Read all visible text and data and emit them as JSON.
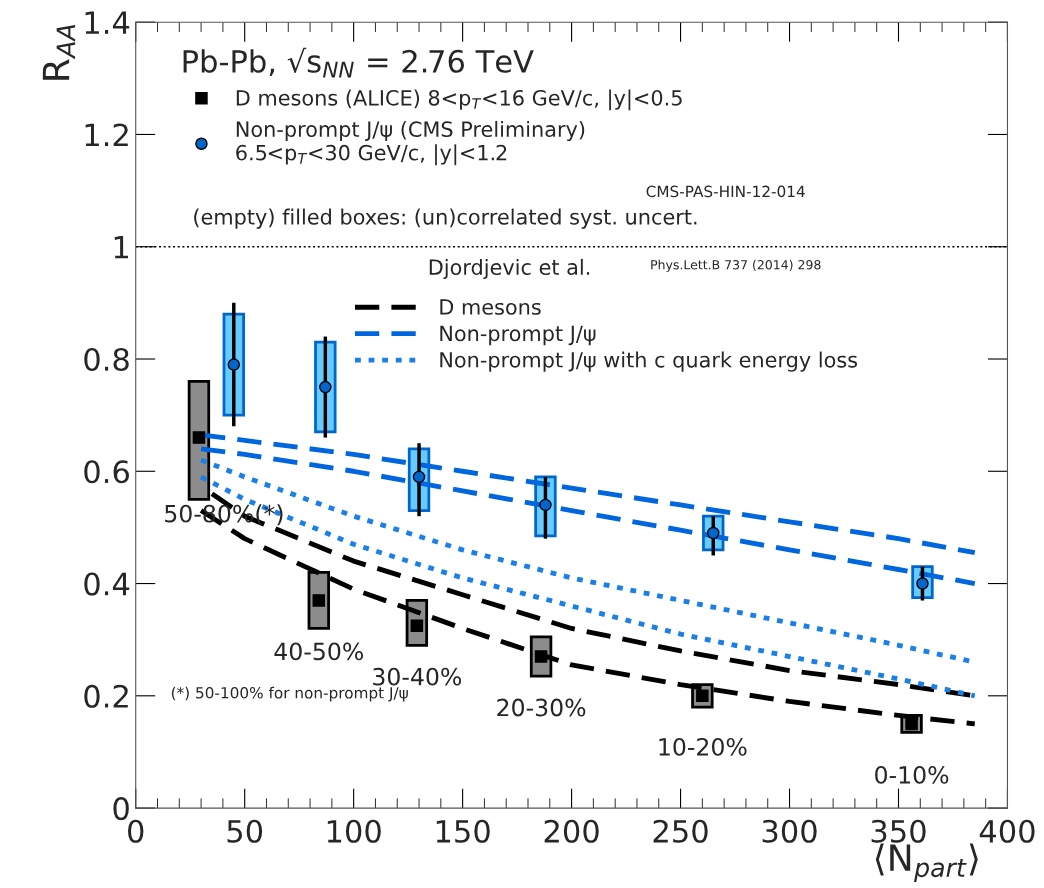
{
  "chart_data": {
    "type": "scatter",
    "xlabel": "⟨N$_{part}$⟩",
    "ylabel": "R$_{AA}$",
    "legend_title": "Pb-Pb, √s$_{NN}$ = 2.76 TeV",
    "xlim": [
      0,
      400
    ],
    "xticks": [
      0,
      50,
      100,
      150,
      200,
      250,
      300,
      350,
      400
    ],
    "ylim": [
      0,
      1.4
    ],
    "yticks": [
      0,
      0.2,
      0.4,
      0.6,
      0.8,
      1,
      1.2,
      1.4
    ],
    "grid": false,
    "legend": "top left",
    "ref_lines": [
      {
        "axis": "y",
        "value": 1,
        "color": "#000000",
        "line_style": "dotted"
      }
    ],
    "annotations": [
      "CMS-PAS-HIN-12-014",
      "(empty) filled boxes: (un)correlated syst. uncert.",
      "Djordjevic et al.",
      "Phys.Lett.B 737 (2014) 298",
      "(*) 50-100% for non-prompt J/ψ",
      {
        "text": "50-80%(*)",
        "x": 29,
        "y": 0.66
      },
      {
        "text": "40-50%",
        "x": 84,
        "y": 0.37
      },
      {
        "text": "30-40%",
        "x": 129,
        "y": 0.325
      },
      {
        "text": "20-30%",
        "x": 186,
        "y": 0.27
      },
      {
        "text": "10-20%",
        "x": 260,
        "y": 0.2
      },
      {
        "text": "0-10%",
        "x": 356,
        "y": 0.15
      }
    ],
    "series": [
      {
        "type": "bar",
        "color": "#8c8c8c",
        "x": [
          29,
          84,
          129,
          186,
          260,
          356
        ],
        "base": [
          0.55,
          0.32,
          0.29,
          0.235,
          0.18,
          0.135
        ],
        "values": [
          0.21,
          0.1,
          0.08,
          0.07,
          0.04,
          0.03
        ]
      },
      {
        "type": "bar",
        "color": "#66ccff",
        "x": [
          45,
          87,
          130,
          188,
          265,
          361
        ],
        "base": [
          0.7,
          0.67,
          0.53,
          0.485,
          0.46,
          0.375
        ],
        "values": [
          0.18,
          0.16,
          0.11,
          0.105,
          0.06,
          0.055
        ]
      },
      {
        "name": "D mesons (ALICE) 8<p$_{T}$<16 GeV/c, |y|<0.5",
        "color": "#000000",
        "marker": "square",
        "x": [
          29,
          84,
          129,
          186,
          260,
          356
        ],
        "values": [
          0.66,
          0.37,
          0.325,
          0.27,
          0.2,
          0.15
        ]
      },
      {
        "name": "Non-prompt J/ψ (CMS Preliminary)\n6.5<p$_{T}$<30 GeV/c, |y|<1.2",
        "color": "#0066cc",
        "marker": "circle",
        "x": [
          45,
          87,
          130,
          188,
          265,
          361
        ],
        "values": [
          0.79,
          0.75,
          0.59,
          0.54,
          0.49,
          0.4
        ],
        "errors": [
          [
            0.68,
            0.9
          ],
          [
            0.66,
            0.84
          ],
          [
            0.52,
            0.65
          ],
          [
            0.48,
            0.59
          ],
          [
            0.45,
            0.52
          ],
          [
            0.37,
            0.43
          ]
        ]
      },
      {
        "type": "line",
        "name": "D mesons",
        "color": "#000000",
        "line_style": "dashed",
        "x": [
          35,
          50,
          100,
          150,
          200,
          250,
          300,
          350,
          385
        ],
        "values": [
          0.56,
          0.52,
          0.44,
          0.38,
          0.32,
          0.28,
          0.245,
          0.22,
          0.2
        ]
      },
      {
        "type": "line",
        "color": "#000000",
        "line_style": "dashed",
        "x": [
          30,
          50,
          100,
          150,
          200,
          250,
          300,
          350,
          385
        ],
        "values": [
          0.53,
          0.48,
          0.39,
          0.32,
          0.255,
          0.22,
          0.19,
          0.165,
          0.15
        ]
      },
      {
        "type": "line",
        "name": "Non-prompt J/ψ",
        "color": "#0066dd",
        "line_style": "dashed",
        "x": [
          30,
          50,
          100,
          150,
          200,
          250,
          300,
          350,
          385
        ],
        "values": [
          0.665,
          0.655,
          0.63,
          0.6,
          0.57,
          0.54,
          0.51,
          0.48,
          0.455
        ]
      },
      {
        "type": "line",
        "color": "#0066dd",
        "line_style": "dashed",
        "x": [
          30,
          50,
          100,
          150,
          200,
          250,
          300,
          350,
          385
        ],
        "values": [
          0.64,
          0.63,
          0.6,
          0.565,
          0.53,
          0.495,
          0.46,
          0.425,
          0.4
        ]
      },
      {
        "type": "line",
        "name": "Non-prompt J/ψ with c quark energy loss",
        "color": "#1a7fe6",
        "line_style": "dotted",
        "x": [
          30,
          50,
          100,
          150,
          200,
          250,
          300,
          350,
          385
        ],
        "values": [
          0.62,
          0.59,
          0.52,
          0.46,
          0.41,
          0.37,
          0.33,
          0.29,
          0.26
        ]
      },
      {
        "type": "line",
        "color": "#1a7fe6",
        "line_style": "dotted",
        "x": [
          30,
          50,
          100,
          150,
          200,
          250,
          300,
          350,
          385
        ],
        "values": [
          0.59,
          0.55,
          0.47,
          0.41,
          0.36,
          0.31,
          0.27,
          0.23,
          0.2
        ]
      }
    ]
  }
}
